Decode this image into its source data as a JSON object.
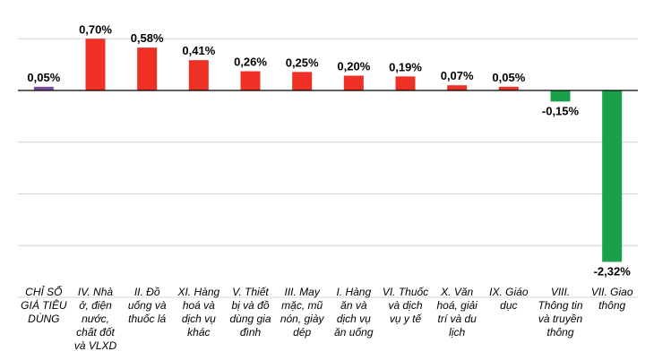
{
  "chart_data": {
    "type": "bar",
    "categories": [
      "CHỈ SỐ GIÁ TIÊU DÙNG",
      "IV. Nhà ở, điện nước, chất đốt và VLXD",
      "II. Đồ uống và thuốc lá",
      "XI. Hàng hoá và dịch vụ khác",
      "V. Thiết bị và đồ dùng gia đình",
      "III. May mặc, mũ nón, giày dép",
      "I. Hàng ăn và dịch vụ ăn uống",
      "VI. Thuốc và dịch vụ y tế",
      "X. Văn hoá, giải trí và du lịch",
      "IX. Giáo dục",
      "VIII. Thông tin và truyền thông",
      "VII. Giao thông"
    ],
    "category_lines": [
      [
        "CHỈ SỐ",
        "GIÁ TIÊU",
        "DÙNG"
      ],
      [
        "IV. Nhà",
        "ở, điện",
        "nước,",
        "chất đốt",
        "và VLXD"
      ],
      [
        "II. Đồ",
        "uống và",
        "thuốc lá"
      ],
      [
        "XI. Hàng",
        "hoá và",
        "dịch vụ",
        "khác"
      ],
      [
        "V. Thiết",
        "bị và đồ",
        "dùng gia",
        "đình"
      ],
      [
        "III. May",
        "mặc, mũ",
        "nón, giày",
        "dép"
      ],
      [
        "I. Hàng",
        "ăn và",
        "dịch vụ",
        "ăn uống"
      ],
      [
        "VI. Thuốc",
        "và dịch",
        "vụ y tế"
      ],
      [
        "X. Văn",
        "hoá, giải",
        "trí và du",
        "lịch"
      ],
      [
        "IX. Giáo",
        "dục"
      ],
      [
        "VIII.",
        "Thông tin",
        "và truyền",
        "thông"
      ],
      [
        "VII. Giao",
        "thông"
      ]
    ],
    "values": [
      0.05,
      0.7,
      0.58,
      0.41,
      0.26,
      0.25,
      0.2,
      0.19,
      0.07,
      0.05,
      -0.15,
      -2.32
    ],
    "labels": [
      "0,05%",
      "0,70%",
      "0,58%",
      "0,41%",
      "0,26%",
      "0,25%",
      "0,20%",
      "0,19%",
      "0,07%",
      "0,05%",
      "-0,15%",
      "-2,32%"
    ],
    "colors": [
      "#7b4fa0",
      "#ee3124",
      "#ee3124",
      "#ee3124",
      "#ee3124",
      "#ee3124",
      "#ee3124",
      "#ee3124",
      "#ee3124",
      "#ee3124",
      "#1aa04a",
      "#1aa04a"
    ],
    "ylim": [
      -2.9,
      0.95
    ],
    "gridlines": [
      0.7,
      0,
      -0.7,
      -1.4,
      -2.1,
      -2.8
    ],
    "grid": true,
    "legend": "none"
  }
}
